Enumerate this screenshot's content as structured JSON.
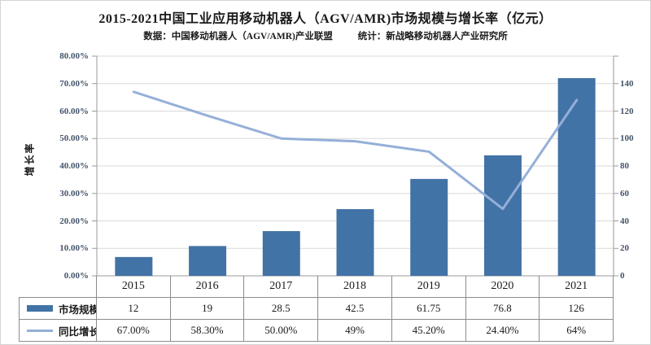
{
  "header": {
    "title": "2015-2021中国工业应用移动机器人（AGV/AMR)市场规模与增长率（亿元）",
    "source_label": "数据：中国移动机器人（AGV/AMR)产业联盟",
    "stats_label": "统计：新战略移动机器人产业研究所"
  },
  "chart_data": {
    "type": "bar",
    "subtype": "combo-bar-line",
    "title": "2015-2021中国工业应用移动机器人（AGV/AMR)市场规模与增长率（亿元）",
    "categories": [
      "2015",
      "2016",
      "2017",
      "2018",
      "2019",
      "2020",
      "2021"
    ],
    "series": [
      {
        "name": "市场规模",
        "chart": "bar",
        "axis": "right",
        "values": [
          12,
          19,
          28.5,
          42.5,
          61.75,
          76.8,
          126
        ],
        "display": [
          "12",
          "19",
          "28.5",
          "42.5",
          "61.75",
          "76.8",
          "126"
        ],
        "color": "#4273a6"
      },
      {
        "name": "同比增长率",
        "chart": "line",
        "axis": "left",
        "values": [
          67.0,
          58.3,
          50.0,
          49.0,
          45.2,
          24.4,
          64.0
        ],
        "display": [
          "67.00%",
          "58.30%",
          "50.00%",
          "49%",
          "45.20%",
          "24.40%",
          "64%"
        ],
        "color": "#95afd8"
      }
    ],
    "left_axis": {
      "label": "增长率",
      "min": 0,
      "max": 80,
      "step": 10,
      "ticks": [
        "0.00%",
        "10.00%",
        "20.00%",
        "30.00%",
        "40.00%",
        "50.00%",
        "60.00%",
        "70.00%",
        "80.00%"
      ]
    },
    "right_axis": {
      "min": 0,
      "max": 140,
      "step": 20,
      "ticks": [
        "0",
        "20",
        "40",
        "60",
        "80",
        "100",
        "120",
        "140"
      ]
    },
    "grid": true,
    "legend_position": "table-left",
    "colors": {
      "bar": "#4273a6",
      "line": "#95afd8",
      "gridline": "#d8d8d8",
      "axis_line": "#9a9a9a",
      "tick_text": "#44546a",
      "table_border": "#8c8c8c"
    }
  }
}
